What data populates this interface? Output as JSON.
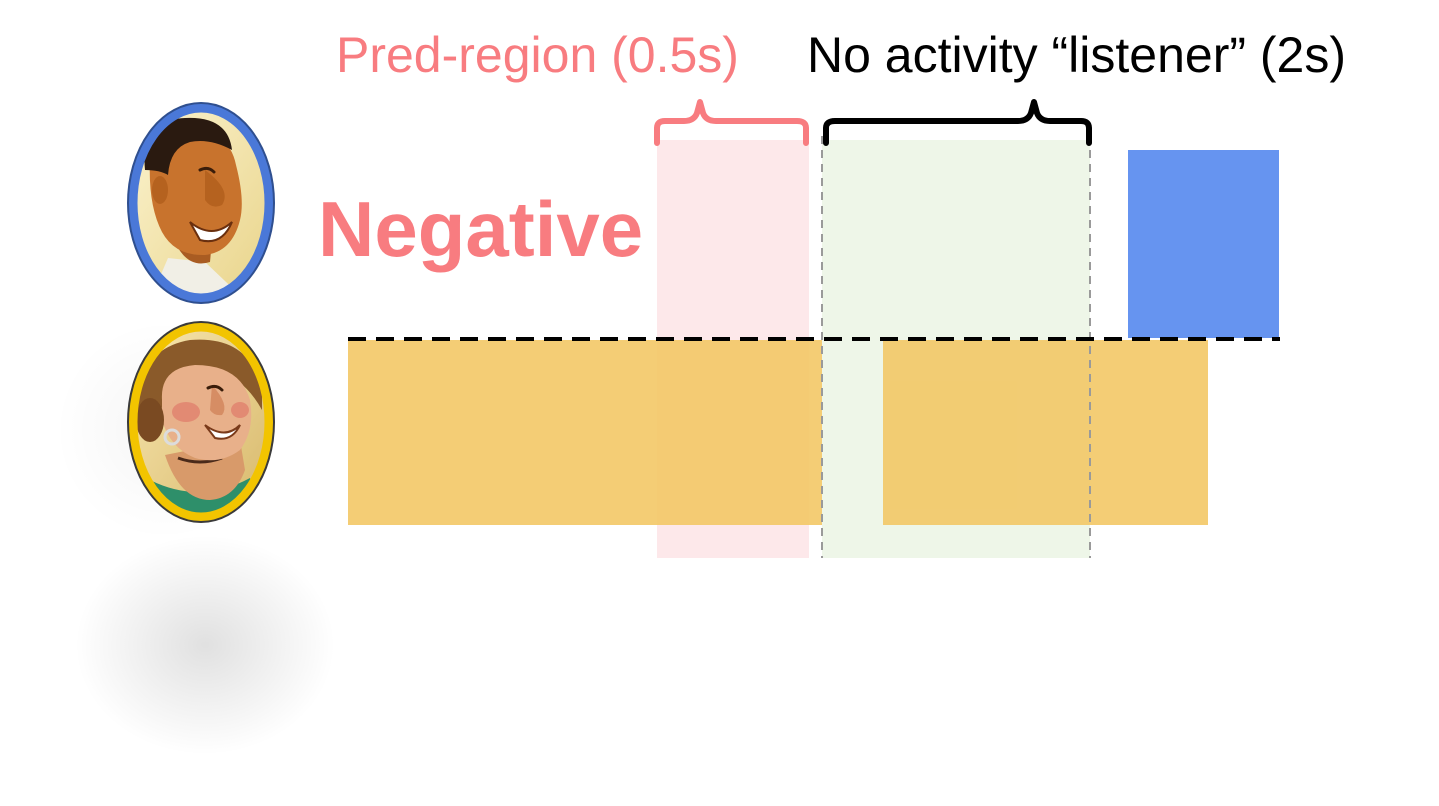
{
  "labels": {
    "pred_region": "Pred-region (0.5s)",
    "no_activity": "No activity “listener” (2s)",
    "verdict": "Negative"
  },
  "colors": {
    "pred_region": "#f87c80",
    "no_activity_text": "#000000",
    "pred_shade": "#fde8ea",
    "no_activity_shade": "#eef6e8",
    "speaker_a": "#6694f0",
    "speaker_b": "#f3c662",
    "avatar_a_frame": "#4a78d8",
    "avatar_b_frame": "#f2c400"
  },
  "icons": {
    "speaker_a": "man-avatar-icon",
    "speaker_b": "woman-avatar-icon"
  }
}
